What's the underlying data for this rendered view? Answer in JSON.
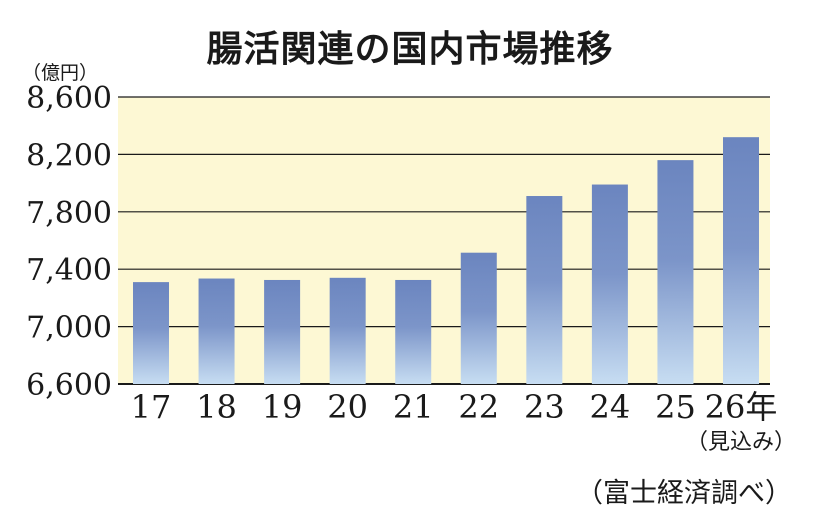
{
  "chart_data": {
    "type": "bar",
    "title": "腸活関連の国内市場推移",
    "unit_label": "（億円）",
    "categories": [
      "17",
      "18",
      "19",
      "20",
      "21",
      "22",
      "23",
      "24",
      "25",
      "26年"
    ],
    "category_note": "（見込み）",
    "values": [
      7310,
      7335,
      7325,
      7340,
      7325,
      7515,
      7910,
      7990,
      8160,
      8320
    ],
    "ylim": [
      6600,
      8600
    ],
    "yticks": [
      6600,
      7000,
      7400,
      7800,
      8200,
      8600
    ],
    "ytick_labels": [
      "6,600",
      "7,000",
      "7,400",
      "7,800",
      "8,200",
      "8,600"
    ],
    "source": "（富士経済調べ）",
    "grid": true,
    "colors": {
      "plot_background": "#fdf8d4",
      "bar_top": "#6b85bf",
      "bar_bottom": "#c7ddf2",
      "grid": "#1a1a1a"
    }
  }
}
